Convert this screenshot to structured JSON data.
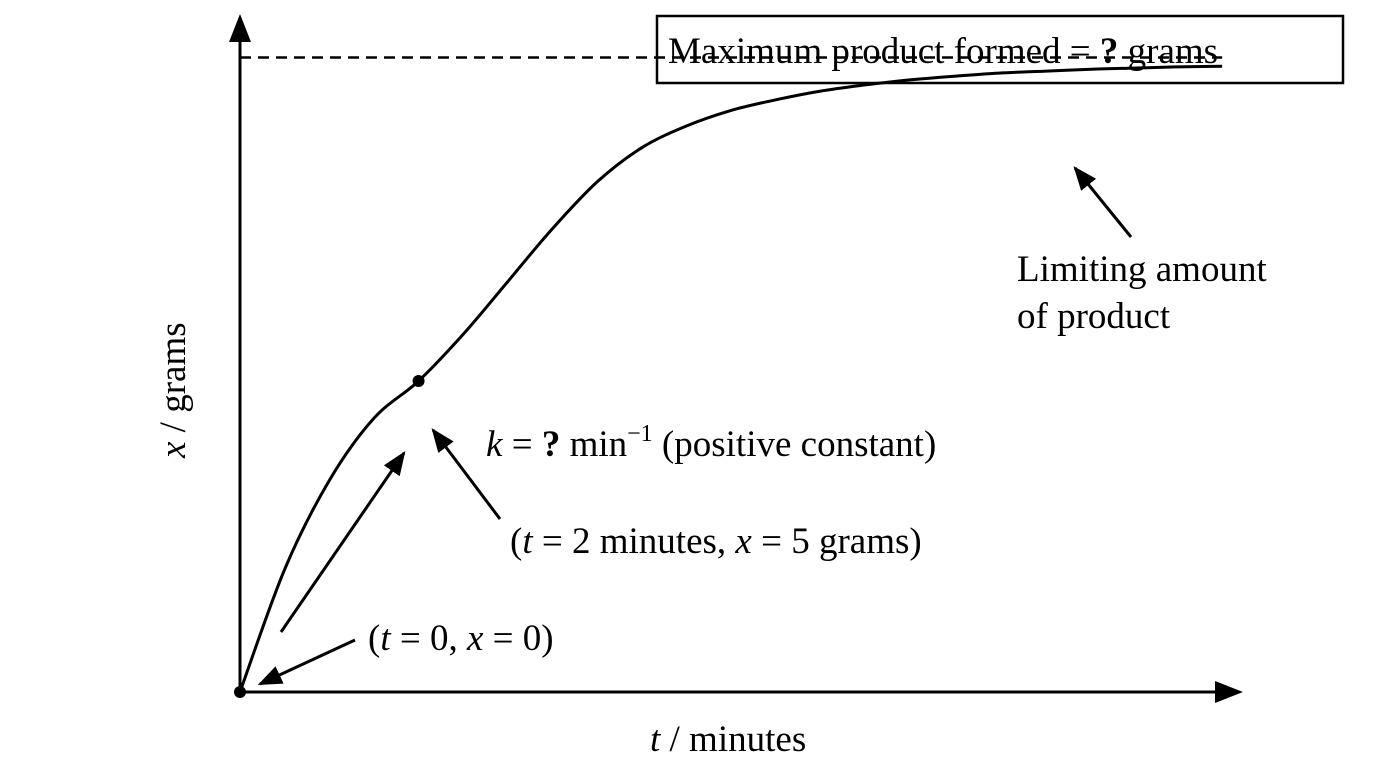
{
  "chart_data": {
    "type": "line",
    "title": "",
    "xlabel": {
      "var": "t",
      "unit": " / minutes"
    },
    "ylabel": {
      "var": "x",
      "unit": " / grams"
    },
    "xlim": [
      0,
      11.2
    ],
    "ylim": [
      0,
      10.9
    ],
    "grid": false,
    "legend": "none",
    "series": [
      {
        "x": [
          0,
          0.5,
          1,
          1.5,
          2,
          2.5,
          3,
          3.5,
          4,
          4.5,
          5,
          5.5,
          6,
          6.5,
          7,
          7.5,
          8,
          8.5,
          9,
          9.5,
          10,
          10.5,
          11
        ],
        "y": [
          0,
          1.97,
          3.4,
          4.4,
          5.0,
          5.75,
          6.6,
          7.45,
          8.2,
          8.75,
          9.1,
          9.35,
          9.52,
          9.66,
          9.76,
          9.84,
          9.9,
          9.95,
          9.98,
          10.01,
          10.03,
          10.05,
          10.06
        ]
      }
    ],
    "limit_line": {
      "y": 10.2,
      "style": "dashed"
    },
    "points": [
      {
        "t": 0,
        "x": 0
      },
      {
        "t": 2,
        "x": 5
      }
    ],
    "annotations": {
      "max_box": {
        "text": "Maximum product formed = ",
        "q": "?",
        "unit": " grams"
      },
      "limit_label_1": "Limiting amount",
      "limit_label_2": "of product",
      "k_label": {
        "k": "k",
        "eq": " = ",
        "q": "?",
        "unit": " min",
        "exp": "−1",
        "note": " (positive constant)"
      },
      "point2_label": {
        "open": "(",
        "t": "t",
        "t_eq": " = 2 minutes, ",
        "x": "x",
        "x_eq": " = 5 grams)"
      },
      "origin_label": {
        "open": "(",
        "t": "t",
        "t_eq": " = 0, ",
        "x": "x",
        "x_eq": " = 0)"
      }
    },
    "colors": {
      "ink": "#000000",
      "background": "#ffffff"
    }
  }
}
